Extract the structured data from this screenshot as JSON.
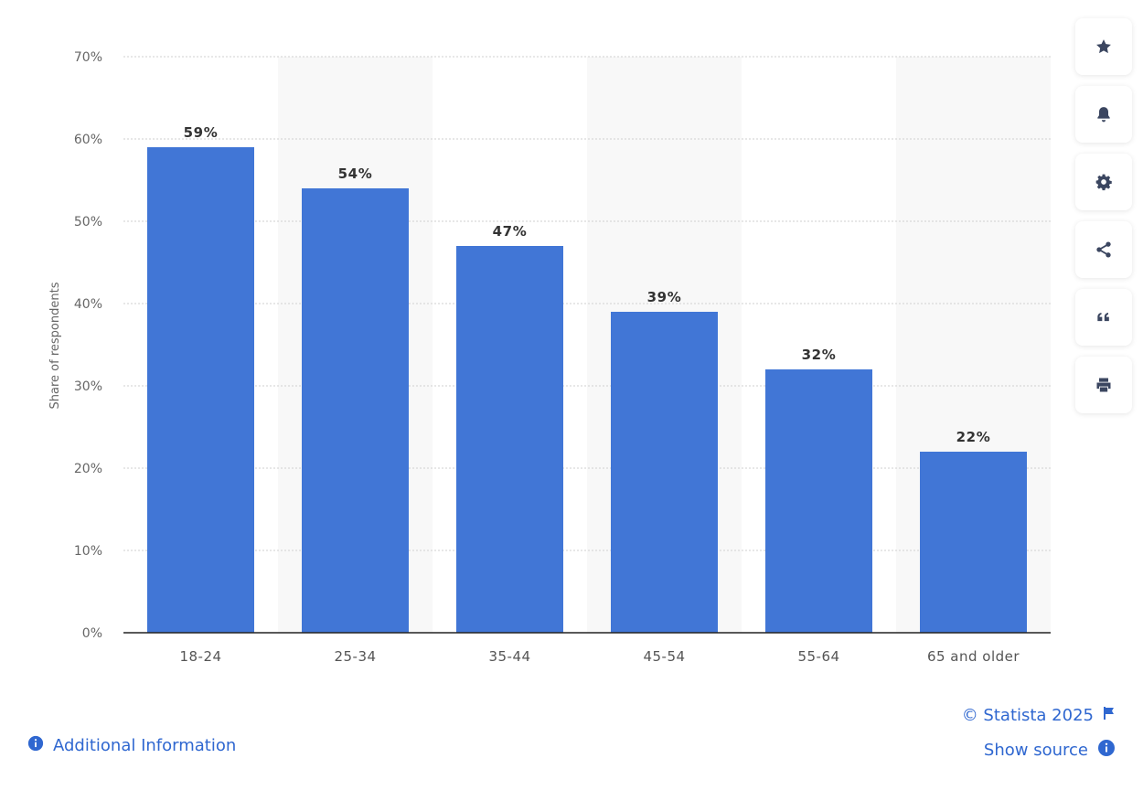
{
  "chart_data": {
    "type": "bar",
    "categories": [
      "18-24",
      "25-34",
      "35-44",
      "45-54",
      "55-64",
      "65 and older"
    ],
    "values": [
      59,
      54,
      47,
      39,
      32,
      22
    ],
    "value_labels": [
      "59%",
      "54%",
      "47%",
      "39%",
      "32%",
      "22%"
    ],
    "ylabel": "Share of respondents",
    "xlabel": "",
    "ylim": [
      0,
      70
    ],
    "yticks": [
      0,
      10,
      20,
      30,
      40,
      50,
      60,
      70
    ],
    "ytick_labels": [
      "0%",
      "10%",
      "20%",
      "30%",
      "40%",
      "50%",
      "60%",
      "70%"
    ],
    "grid": true,
    "bar_color": "#4176d6",
    "band_color": "#f8f8f8"
  },
  "toolbar": {
    "items": [
      {
        "icon": "star-icon",
        "name": "favorite-button"
      },
      {
        "icon": "bell-icon",
        "name": "notification-button"
      },
      {
        "icon": "gear-icon",
        "name": "settings-button"
      },
      {
        "icon": "share-icon",
        "name": "share-button"
      },
      {
        "icon": "quote-icon",
        "name": "cite-button"
      },
      {
        "icon": "print-icon",
        "name": "print-button"
      }
    ]
  },
  "footer": {
    "copyright": "© Statista 2025",
    "show_source": "Show source",
    "additional_info": "Additional Information",
    "link_color": "#2f67d0"
  }
}
